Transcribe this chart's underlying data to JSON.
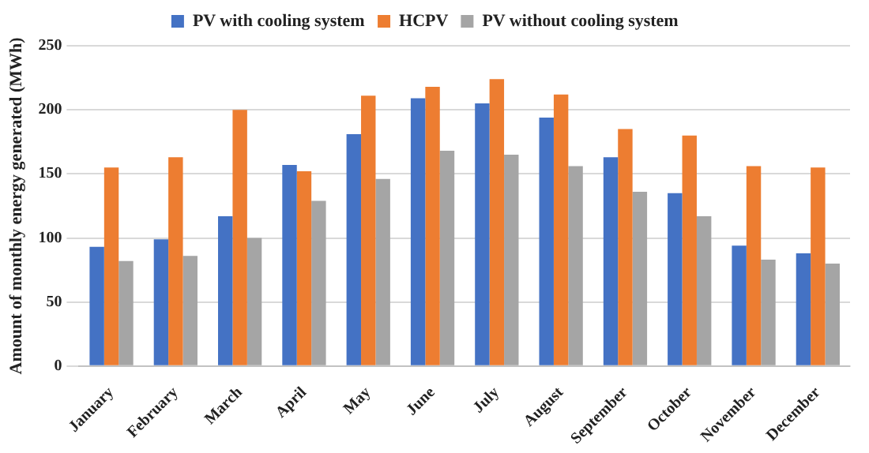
{
  "chart_data": {
    "type": "bar",
    "categories": [
      "January",
      "February",
      "March",
      "April",
      "May",
      "June",
      "July",
      "August",
      "September",
      "October",
      "November",
      "December"
    ],
    "series": [
      {
        "name": "PV with cooling system",
        "color": "#4472c4",
        "values": [
          93,
          99,
          117,
          157,
          181,
          209,
          205,
          194,
          163,
          135,
          94,
          88
        ]
      },
      {
        "name": "HCPV",
        "color": "#ed7d31",
        "values": [
          155,
          163,
          200,
          152,
          211,
          218,
          224,
          212,
          185,
          180,
          156,
          155
        ]
      },
      {
        "name": "PV without cooling system",
        "color": "#a5a5a5",
        "values": [
          82,
          86,
          100,
          129,
          146,
          168,
          165,
          156,
          136,
          117,
          83,
          80
        ]
      }
    ],
    "ylabel": "Amount of monthly energy generated (MWh)",
    "ylim": [
      0,
      250
    ],
    "yticks": [
      0,
      50,
      100,
      150,
      200,
      250
    ],
    "grid": "y",
    "legend": "top"
  }
}
